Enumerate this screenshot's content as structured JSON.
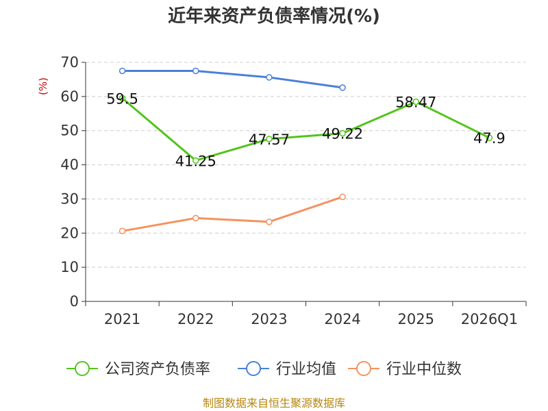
{
  "chart_data": {
    "type": "line",
    "title": "近年来资产负债率情况(%)",
    "ylabel": "(%)",
    "xlabel": "",
    "categories": [
      "2021",
      "2022",
      "2023",
      "2024",
      "2025",
      "2026Q1"
    ],
    "ylim": [
      0,
      70
    ],
    "yticks": [
      0,
      10,
      20,
      30,
      40,
      50,
      60,
      70
    ],
    "grid": true,
    "legend_position": "bottom",
    "series": [
      {
        "name": "公司资产负债率",
        "color": "#52c41a",
        "values": [
          59.5,
          41.25,
          47.57,
          49.22,
          58.47,
          47.9
        ],
        "labels": [
          "59.5",
          "41.25",
          "47.57",
          "49.22",
          "58.47",
          "47.9"
        ]
      },
      {
        "name": "行业均值",
        "color": "#4a7fd9",
        "values": [
          67.5,
          67.5,
          65.6,
          62.6,
          null,
          null
        ]
      },
      {
        "name": "行业中位数",
        "color": "#f5925e",
        "values": [
          20.6,
          24.4,
          23.3,
          30.6,
          null,
          null
        ]
      }
    ]
  },
  "source": "制图数据来自恒生聚源数据库",
  "colors": {
    "ylabel": "#cc0000",
    "source": "#b8860b",
    "axis": "#333333",
    "grid": "#cccccc"
  }
}
